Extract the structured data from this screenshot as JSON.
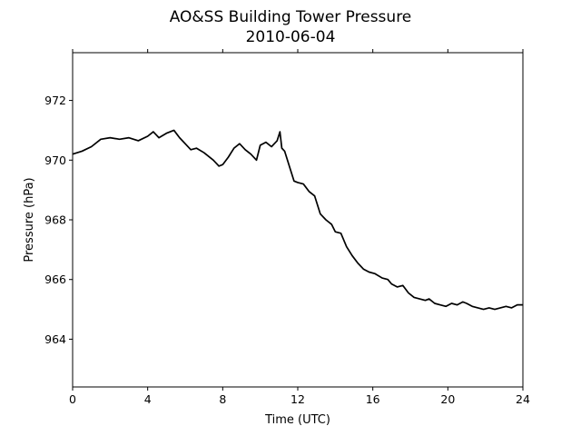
{
  "chart_data": {
    "type": "line",
    "title": "AO&SS Building Tower Pressure",
    "subtitle": "2010-06-04",
    "xlabel": "Time (UTC)",
    "ylabel": "Pressure (hPa)",
    "xlim": [
      0,
      24
    ],
    "ylim": [
      962.4,
      973.6
    ],
    "xticks": [
      "0",
      "4",
      "8",
      "12",
      "16",
      "20",
      "24"
    ],
    "yticks": [
      "964",
      "966",
      "968",
      "970",
      "972"
    ],
    "grid": false,
    "line_color": "#000000",
    "series": [
      {
        "x": [
          0,
          0.5,
          1.0,
          1.5,
          2.0,
          2.5,
          3.0,
          3.5,
          4.0,
          4.3,
          4.6,
          5.0,
          5.4,
          5.7,
          6.0,
          6.3,
          6.6,
          7.0,
          7.5,
          7.8,
          8.0,
          8.3,
          8.6,
          8.9,
          9.2,
          9.5,
          9.8,
          10.0,
          10.3,
          10.6,
          10.9,
          11.05,
          11.15,
          11.3,
          11.6,
          11.8,
          12.0,
          12.3,
          12.6,
          12.9,
          13.2,
          13.5,
          13.8,
          14.0,
          14.3,
          14.6,
          14.9,
          15.2,
          15.5,
          15.8,
          16.1,
          16.5,
          16.8,
          17.0,
          17.3,
          17.6,
          17.9,
          18.2,
          18.5,
          18.8,
          19.0,
          19.3,
          19.6,
          19.9,
          20.2,
          20.5,
          20.8,
          21.0,
          21.3,
          21.6,
          21.9,
          22.2,
          22.5,
          22.8,
          23.1,
          23.4,
          23.7,
          24.0
        ],
        "y": [
          970.2,
          970.3,
          970.45,
          970.7,
          970.75,
          970.7,
          970.75,
          970.65,
          970.8,
          970.95,
          970.75,
          970.9,
          971.0,
          970.75,
          970.55,
          970.35,
          970.4,
          970.25,
          970.0,
          969.8,
          969.85,
          970.1,
          970.4,
          970.55,
          970.35,
          970.2,
          970.0,
          970.5,
          970.6,
          970.45,
          970.65,
          970.95,
          970.4,
          970.3,
          969.7,
          969.3,
          969.25,
          969.2,
          968.95,
          968.8,
          968.2,
          968.0,
          967.85,
          967.6,
          967.55,
          967.1,
          966.8,
          966.55,
          966.35,
          966.25,
          966.2,
          966.05,
          966.0,
          965.85,
          965.75,
          965.8,
          965.55,
          965.4,
          965.35,
          965.3,
          965.35,
          965.2,
          965.15,
          965.1,
          965.2,
          965.15,
          965.25,
          965.2,
          965.1,
          965.05,
          965.0,
          965.05,
          965.0,
          965.05,
          965.1,
          965.05,
          965.15,
          965.15
        ]
      }
    ]
  }
}
